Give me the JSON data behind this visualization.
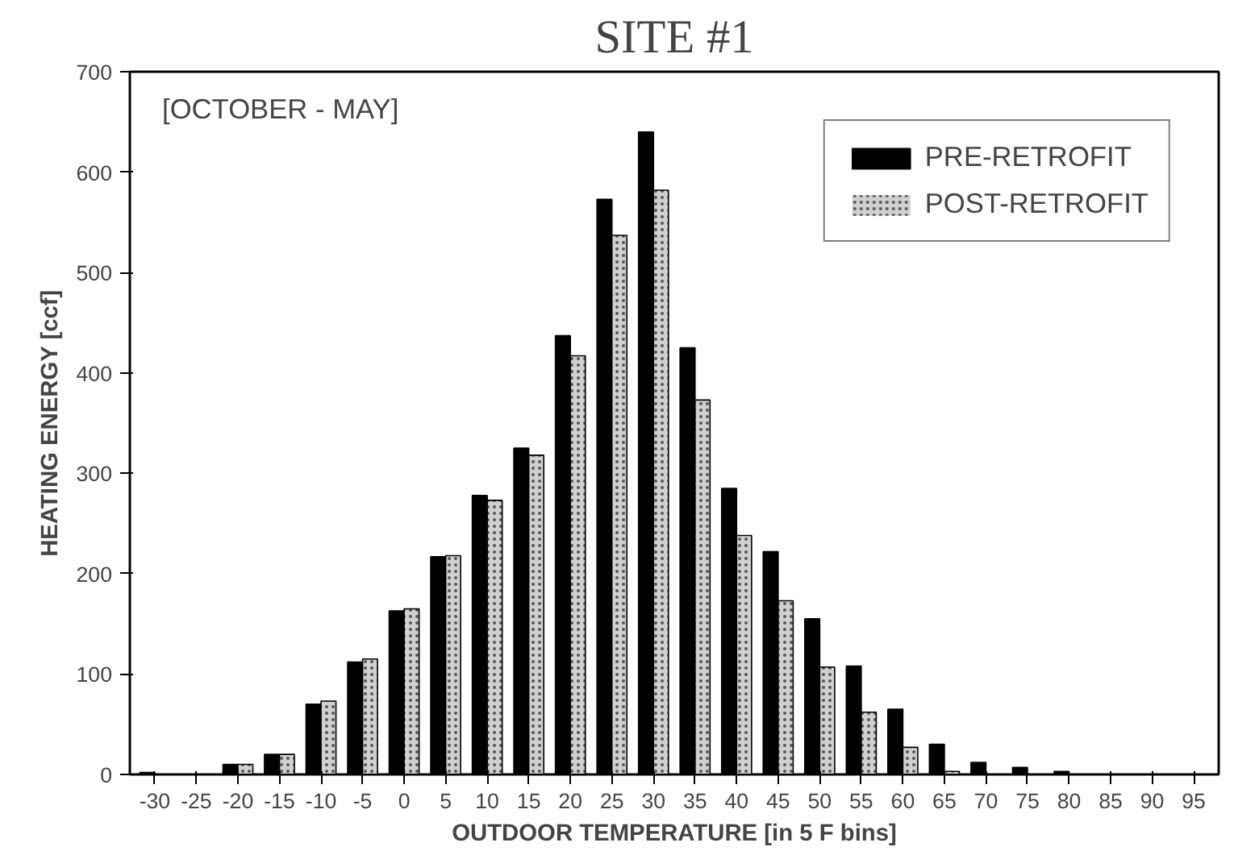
{
  "chart_data": {
    "type": "bar",
    "title": "SITE #1",
    "xlabel": "OUTDOOR TEMPERATURE [in 5 F bins]",
    "ylabel": "HEATING ENERGY [ccf]",
    "categories": [
      "-30",
      "-25",
      "-20",
      "-15",
      "-10",
      "-5",
      "0",
      "5",
      "10",
      "15",
      "20",
      "25",
      "30",
      "35",
      "40",
      "45",
      "50",
      "55",
      "60",
      "65",
      "70",
      "75",
      "80",
      "85",
      "90",
      "95"
    ],
    "series": [
      {
        "name": "PRE-RETROFIT",
        "color": "#000000",
        "values": [
          2,
          0,
          10,
          20,
          70,
          112,
          163,
          217,
          278,
          325,
          437,
          573,
          640,
          425,
          285,
          222,
          155,
          108,
          65,
          30,
          12,
          7,
          3,
          null,
          0,
          0
        ]
      },
      {
        "name": "POST-RETROFIT",
        "color": "#d0d0d0",
        "values": [
          0,
          0,
          10,
          20,
          73,
          115,
          165,
          218,
          273,
          318,
          417,
          537,
          582,
          373,
          238,
          173,
          107,
          62,
          27,
          3,
          null,
          null,
          0,
          0,
          0,
          0
        ]
      }
    ],
    "ylim": [
      0,
      700
    ],
    "yticks": [
      0,
      100,
      200,
      300,
      400,
      500,
      600,
      700
    ],
    "grid": false,
    "legend": "top right",
    "annotations": [
      "[OCTOBER - MAY]"
    ]
  }
}
